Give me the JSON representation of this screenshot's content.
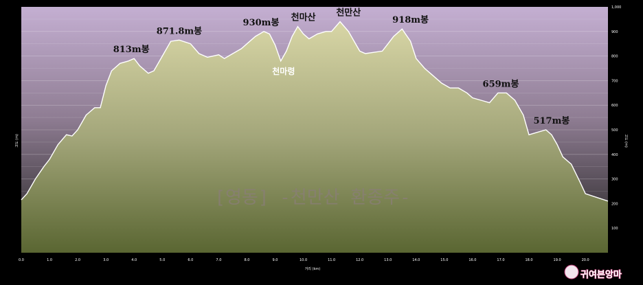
{
  "chart_data": {
    "type": "area",
    "title": "",
    "watermark": "[영동] -천만산 환종주-",
    "xlabel": "거리 (km)",
    "ylabel_left": "고도 (m)",
    "ylabel_right": "고도 (m)",
    "xlim": [
      0,
      20.8
    ],
    "ylim": [
      0,
      1000
    ],
    "x_ticks": [
      "0.0",
      "1.0",
      "2.0",
      "3.0",
      "4.0",
      "5.0",
      "6.0",
      "7.0",
      "8.0",
      "9.0",
      "10.0",
      "11.0",
      "12.0",
      "13.0",
      "14.0",
      "15.0",
      "16.0",
      "17.0",
      "18.0",
      "19.0",
      "20.0"
    ],
    "y_ticks_right": [
      "100",
      "200",
      "300",
      "400",
      "500",
      "600",
      "700",
      "800",
      "900",
      "1,000"
    ],
    "x": [
      0,
      0.2,
      0.5,
      0.8,
      1.0,
      1.3,
      1.6,
      1.8,
      2.0,
      2.3,
      2.6,
      2.8,
      3.0,
      3.2,
      3.5,
      3.8,
      4.0,
      4.2,
      4.5,
      4.7,
      5.0,
      5.3,
      5.6,
      6.0,
      6.3,
      6.6,
      7.0,
      7.2,
      7.5,
      7.8,
      8.0,
      8.3,
      8.6,
      8.8,
      9.0,
      9.2,
      9.4,
      9.6,
      9.8,
      10.0,
      10.2,
      10.5,
      10.8,
      11.0,
      11.3,
      11.6,
      11.8,
      12.0,
      12.2,
      12.5,
      12.8,
      13.0,
      13.2,
      13.5,
      13.8,
      14.0,
      14.3,
      14.6,
      14.9,
      15.2,
      15.5,
      15.8,
      16.0,
      16.3,
      16.6,
      16.9,
      17.2,
      17.5,
      17.8,
      18.0,
      18.3,
      18.6,
      18.8,
      19.0,
      19.2,
      19.5,
      19.8,
      20.0,
      20.4,
      20.8
    ],
    "y": [
      215,
      240,
      300,
      350,
      380,
      440,
      480,
      475,
      500,
      560,
      590,
      590,
      680,
      740,
      770,
      780,
      790,
      760,
      730,
      740,
      800,
      860,
      865,
      850,
      810,
      795,
      805,
      790,
      810,
      830,
      850,
      880,
      900,
      890,
      845,
      780,
      820,
      880,
      920,
      890,
      870,
      890,
      900,
      900,
      940,
      900,
      860,
      820,
      810,
      815,
      820,
      850,
      880,
      910,
      860,
      790,
      750,
      720,
      690,
      670,
      670,
      650,
      630,
      620,
      610,
      650,
      650,
      620,
      560,
      480,
      490,
      500,
      480,
      440,
      390,
      360,
      290,
      240,
      225,
      210
    ],
    "peak_labels": [
      {
        "text": "813m봉",
        "x": 3.9,
        "y": 790
      },
      {
        "text": "871.8m봉",
        "x": 5.6,
        "y": 865
      },
      {
        "text": "930m봉",
        "x": 8.5,
        "y": 900
      },
      {
        "text": "천마산",
        "x": 10.0,
        "y": 920
      },
      {
        "text": "천만산",
        "x": 11.6,
        "y": 940
      },
      {
        "text": "918m봉",
        "x": 13.8,
        "y": 910
      },
      {
        "text": "659m봉",
        "x": 17.0,
        "y": 650
      },
      {
        "text": "517m봉",
        "x": 18.8,
        "y": 500
      }
    ],
    "valley_labels": [
      {
        "text": "천마령",
        "x": 9.3,
        "y": 780
      }
    ],
    "grid": true,
    "fill_colors": {
      "top": "#d8d6a6",
      "bottom": "#5a6632"
    },
    "background_colors": {
      "top": "#c4afd2",
      "bottom": "#1e1e1c"
    }
  },
  "logo": {
    "text": "귀여븐앙마"
  }
}
